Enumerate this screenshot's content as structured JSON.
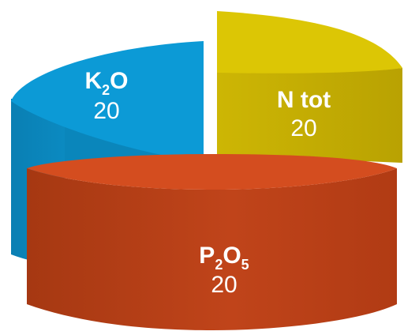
{
  "chart_data": {
    "type": "pie",
    "style": "3d-exploded",
    "slices": [
      {
        "key": "k2o",
        "label_main": "K",
        "label_sub": "2",
        "label_tail": "O",
        "value": 20,
        "value_text": "20",
        "top_color": "#0c9ad6",
        "side_color": "#0a86bb"
      },
      {
        "key": "ntot",
        "label_main": "N tot",
        "label_sub": "",
        "label_tail": "",
        "value": 20,
        "value_text": "20",
        "top_color": "#dcc605",
        "side_color": "#c2ab02"
      },
      {
        "key": "p2o5",
        "label_main": "P",
        "label_sub": "2",
        "label_tail": "O",
        "label_sub2": "5",
        "value": 20,
        "value_text": "20",
        "top_color": "#d44d1f",
        "side_color": "#b83d14"
      }
    ]
  }
}
